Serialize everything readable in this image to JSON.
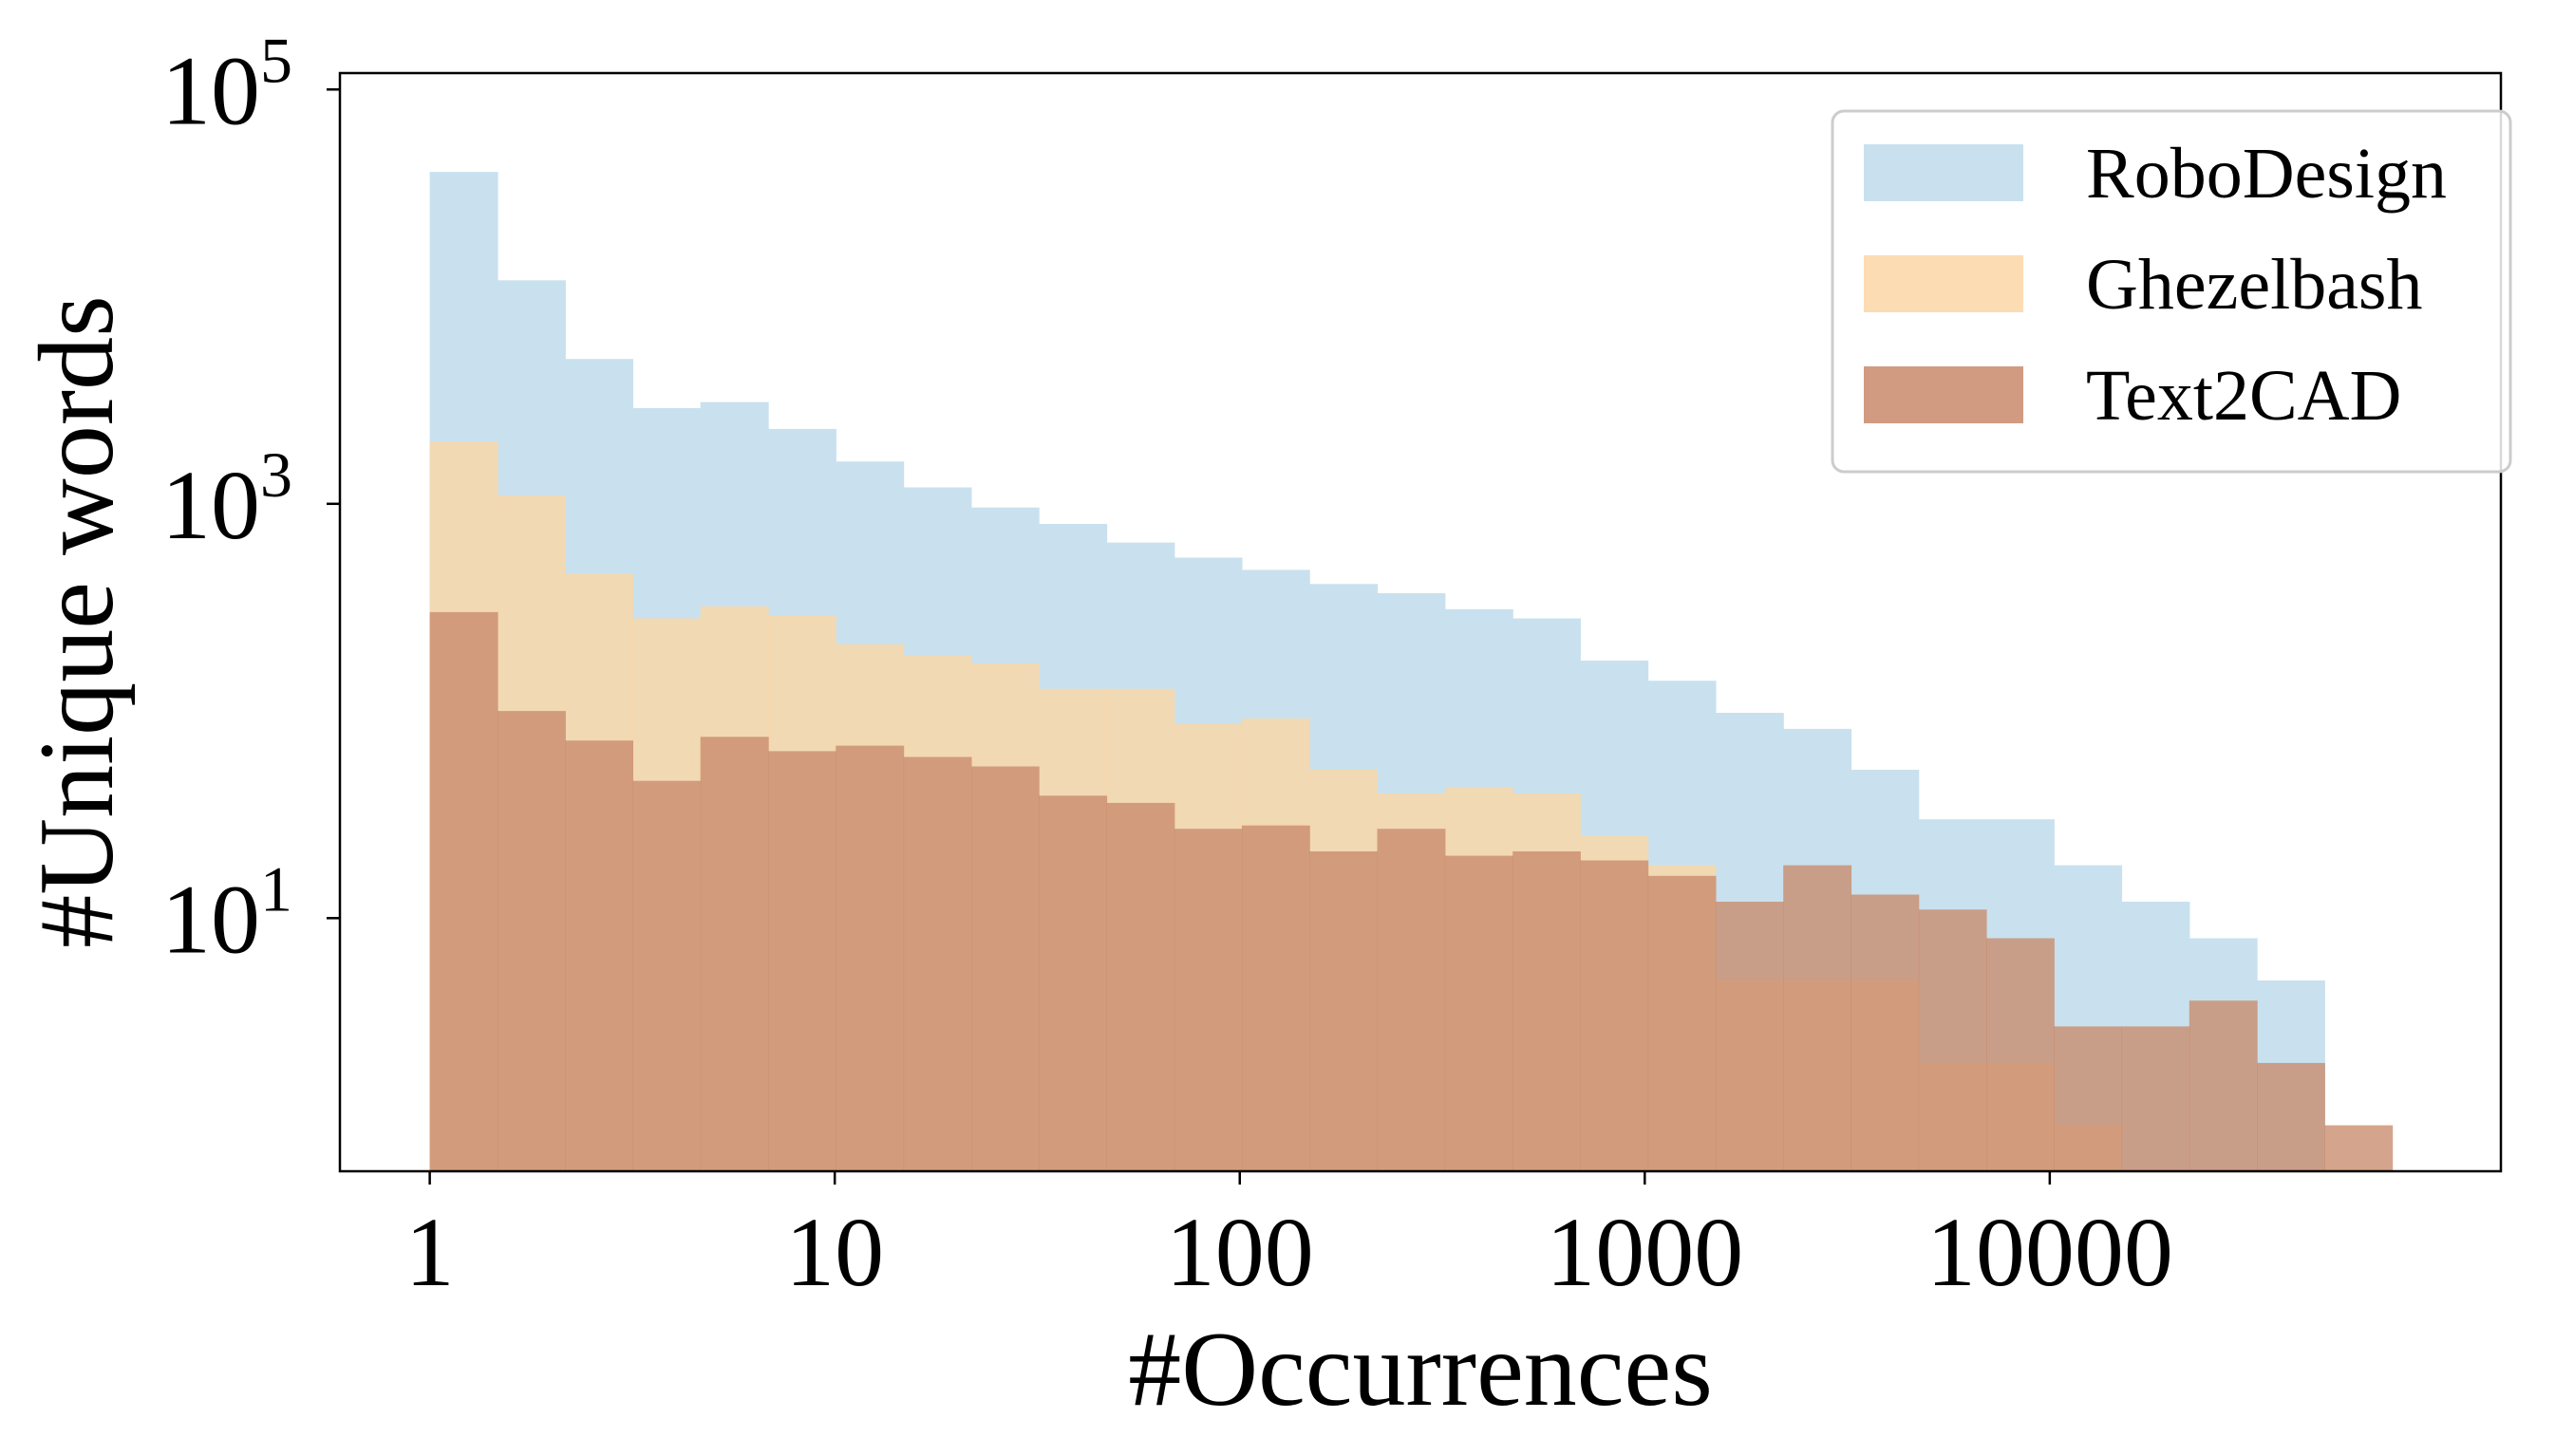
{
  "chart_data": {
    "type": "bar",
    "subtype": "overlapping-histogram",
    "xlabel": "#Occurrences",
    "ylabel": "#Unique words",
    "x_scale": "log",
    "y_scale": "log",
    "xlim": [
      0.6,
      130000
    ],
    "ylim": [
      0.6,
      120000
    ],
    "x_ticks": [
      {
        "value": 1,
        "label": "1"
      },
      {
        "value": 10,
        "label": "10"
      },
      {
        "value": 100,
        "label": "100"
      },
      {
        "value": 1000,
        "label": "1000"
      },
      {
        "value": 10000,
        "label": "10000"
      }
    ],
    "y_ticks": [
      {
        "value": 10,
        "base": "10",
        "exp": "1"
      },
      {
        "value": 1000,
        "base": "10",
        "exp": "3"
      },
      {
        "value": 100000,
        "base": "10",
        "exp": "5"
      }
    ],
    "grid": false,
    "legend_position": "top-right",
    "series": [
      {
        "name": "RoboDesign",
        "color": "#c9e1ee",
        "bins": [
          {
            "x0": 1.0,
            "x1": 1.47,
            "y": 40000
          },
          {
            "x0": 1.47,
            "x1": 2.16,
            "y": 12000
          },
          {
            "x0": 2.16,
            "x1": 3.17,
            "y": 5000
          },
          {
            "x0": 3.17,
            "x1": 4.66,
            "y": 2900
          },
          {
            "x0": 4.66,
            "x1": 6.85,
            "y": 3100
          },
          {
            "x0": 6.85,
            "x1": 10.06,
            "y": 2300
          },
          {
            "x0": 10.06,
            "x1": 14.78,
            "y": 1600
          },
          {
            "x0": 14.78,
            "x1": 21.72,
            "y": 1200
          },
          {
            "x0": 21.72,
            "x1": 31.9,
            "y": 960
          },
          {
            "x0": 31.9,
            "x1": 46.9,
            "y": 800
          },
          {
            "x0": 46.9,
            "x1": 68.9,
            "y": 650
          },
          {
            "x0": 68.9,
            "x1": 101.2,
            "y": 550
          },
          {
            "x0": 101.2,
            "x1": 148.7,
            "y": 480
          },
          {
            "x0": 148.7,
            "x1": 218.5,
            "y": 410
          },
          {
            "x0": 218.5,
            "x1": 321,
            "y": 370
          },
          {
            "x0": 321,
            "x1": 472,
            "y": 310
          },
          {
            "x0": 472,
            "x1": 693,
            "y": 280
          },
          {
            "x0": 693,
            "x1": 1018,
            "y": 175
          },
          {
            "x0": 1018,
            "x1": 1496,
            "y": 140
          },
          {
            "x0": 1496,
            "x1": 2198,
            "y": 98
          },
          {
            "x0": 2198,
            "x1": 3229,
            "y": 82
          },
          {
            "x0": 3229,
            "x1": 4744,
            "y": 52
          },
          {
            "x0": 4744,
            "x1": 6970,
            "y": 30
          },
          {
            "x0": 6970,
            "x1": 10240,
            "y": 30
          },
          {
            "x0": 10240,
            "x1": 15044,
            "y": 18
          },
          {
            "x0": 15044,
            "x1": 22103,
            "y": 12
          },
          {
            "x0": 22103,
            "x1": 32474,
            "y": 8
          },
          {
            "x0": 32474,
            "x1": 47712,
            "y": 5
          }
        ]
      },
      {
        "name": "Ghezelbash",
        "color": "#fcd6a4",
        "bins": [
          {
            "x0": 1.0,
            "x1": 1.47,
            "y": 2000
          },
          {
            "x0": 1.47,
            "x1": 2.16,
            "y": 1100
          },
          {
            "x0": 2.16,
            "x1": 3.17,
            "y": 460
          },
          {
            "x0": 3.17,
            "x1": 4.66,
            "y": 280
          },
          {
            "x0": 4.66,
            "x1": 6.85,
            "y": 320
          },
          {
            "x0": 6.85,
            "x1": 10.06,
            "y": 290
          },
          {
            "x0": 10.06,
            "x1": 14.78,
            "y": 210
          },
          {
            "x0": 14.78,
            "x1": 21.72,
            "y": 185
          },
          {
            "x0": 21.72,
            "x1": 31.9,
            "y": 170
          },
          {
            "x0": 31.9,
            "x1": 46.9,
            "y": 128
          },
          {
            "x0": 46.9,
            "x1": 68.9,
            "y": 128
          },
          {
            "x0": 68.9,
            "x1": 101.2,
            "y": 87
          },
          {
            "x0": 101.2,
            "x1": 148.7,
            "y": 92
          },
          {
            "x0": 148.7,
            "x1": 218.5,
            "y": 52
          },
          {
            "x0": 218.5,
            "x1": 321,
            "y": 40
          },
          {
            "x0": 321,
            "x1": 472,
            "y": 43
          },
          {
            "x0": 472,
            "x1": 693,
            "y": 40
          },
          {
            "x0": 693,
            "x1": 1018,
            "y": 25
          },
          {
            "x0": 1018,
            "x1": 1496,
            "y": 18
          },
          {
            "x0": 1496,
            "x1": 2198,
            "y": 5
          },
          {
            "x0": 2198,
            "x1": 3229,
            "y": 5
          },
          {
            "x0": 3229,
            "x1": 4744,
            "y": 5
          },
          {
            "x0": 4744,
            "x1": 6970,
            "y": 2
          },
          {
            "x0": 6970,
            "x1": 10240,
            "y": 2
          },
          {
            "x0": 10240,
            "x1": 15044,
            "y": 1
          }
        ]
      },
      {
        "name": "Text2CAD",
        "color": "#c98a6b",
        "bins": [
          {
            "x0": 1.0,
            "x1": 1.47,
            "y": 300
          },
          {
            "x0": 1.47,
            "x1": 2.16,
            "y": 100
          },
          {
            "x0": 2.16,
            "x1": 3.17,
            "y": 72
          },
          {
            "x0": 3.17,
            "x1": 4.66,
            "y": 46
          },
          {
            "x0": 4.66,
            "x1": 6.85,
            "y": 75
          },
          {
            "x0": 6.85,
            "x1": 10.06,
            "y": 64
          },
          {
            "x0": 10.06,
            "x1": 14.78,
            "y": 68
          },
          {
            "x0": 14.78,
            "x1": 21.72,
            "y": 60
          },
          {
            "x0": 21.72,
            "x1": 31.9,
            "y": 54
          },
          {
            "x0": 31.9,
            "x1": 46.9,
            "y": 39
          },
          {
            "x0": 46.9,
            "x1": 68.9,
            "y": 36
          },
          {
            "x0": 68.9,
            "x1": 101.2,
            "y": 27
          },
          {
            "x0": 101.2,
            "x1": 148.7,
            "y": 28
          },
          {
            "x0": 148.7,
            "x1": 218.5,
            "y": 21
          },
          {
            "x0": 218.5,
            "x1": 321,
            "y": 27
          },
          {
            "x0": 321,
            "x1": 472,
            "y": 20
          },
          {
            "x0": 472,
            "x1": 693,
            "y": 21
          },
          {
            "x0": 693,
            "x1": 1018,
            "y": 19
          },
          {
            "x0": 1018,
            "x1": 1496,
            "y": 16
          },
          {
            "x0": 1496,
            "x1": 2198,
            "y": 12
          },
          {
            "x0": 2198,
            "x1": 3229,
            "y": 18
          },
          {
            "x0": 3229,
            "x1": 4744,
            "y": 13
          },
          {
            "x0": 4744,
            "x1": 6970,
            "y": 11
          },
          {
            "x0": 6970,
            "x1": 10240,
            "y": 8
          },
          {
            "x0": 10240,
            "x1": 15044,
            "y": 3
          },
          {
            "x0": 15044,
            "x1": 22103,
            "y": 3
          },
          {
            "x0": 22103,
            "x1": 32474,
            "y": 4
          },
          {
            "x0": 32474,
            "x1": 47712,
            "y": 2
          },
          {
            "x0": 47712,
            "x1": 70093,
            "y": 1
          }
        ]
      }
    ]
  }
}
